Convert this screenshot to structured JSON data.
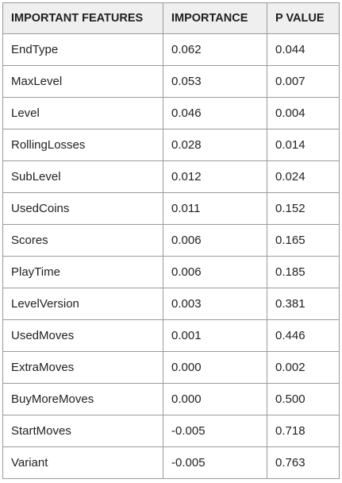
{
  "table": {
    "headers": [
      "IMPORTANT FEATURES",
      "IMPORTANCE",
      "P VALUE"
    ],
    "rows": [
      [
        "EndType",
        "0.062",
        "0.044"
      ],
      [
        "MaxLevel",
        "0.053",
        "0.007"
      ],
      [
        "Level",
        "0.046",
        "0.004"
      ],
      [
        "RollingLosses",
        "0.028",
        "0.014"
      ],
      [
        "SubLevel",
        "0.012",
        "0.024"
      ],
      [
        "UsedCoins",
        "0.011",
        "0.152"
      ],
      [
        "Scores",
        "0.006",
        "0.165"
      ],
      [
        "PlayTime",
        "0.006",
        "0.185"
      ],
      [
        "LevelVersion",
        "0.003",
        "0.381"
      ],
      [
        "UsedMoves",
        "0.001",
        "0.446"
      ],
      [
        "ExtraMoves",
        "0.000",
        "0.002"
      ],
      [
        "BuyMoreMoves",
        "0.000",
        "0.500"
      ],
      [
        "StartMoves",
        "-0.005",
        "0.718"
      ],
      [
        "Variant",
        "-0.005",
        "0.763"
      ]
    ]
  },
  "colors": {
    "header_background": "#efefef",
    "border": "#9a9a9a",
    "text": "#222222"
  }
}
